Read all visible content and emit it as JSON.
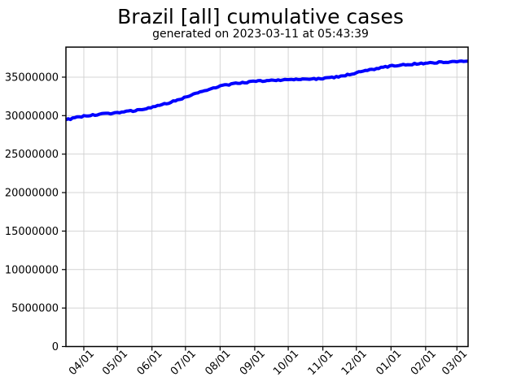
{
  "chart_data": {
    "type": "line",
    "title": "Brazil [all] cumulative cases",
    "subtitle": "generated on 2023-03-11 at 05:43:39",
    "xlabel": "",
    "ylabel": "",
    "grid": true,
    "legend": false,
    "background_color": "#ffffff",
    "grid_color": "#d4d4d4",
    "axis_color": "#000000",
    "tick_label_color": "#000000",
    "ylim": [
      0,
      38900000
    ],
    "y_ticks": [
      0,
      5000000,
      10000000,
      15000000,
      20000000,
      25000000,
      30000000,
      35000000
    ],
    "y_tick_labels": [
      "0",
      "5000000",
      "10000000",
      "15000000",
      "20000000",
      "25000000",
      "30000000",
      "35000000"
    ],
    "x_range": [
      "2022-03-16",
      "2023-03-11"
    ],
    "x_ticks": [
      {
        "date": "2022-04-01",
        "label": "04/01"
      },
      {
        "date": "2022-05-01",
        "label": "05/01"
      },
      {
        "date": "2022-06-01",
        "label": "06/01"
      },
      {
        "date": "2022-07-01",
        "label": "07/01"
      },
      {
        "date": "2022-08-01",
        "label": "08/01"
      },
      {
        "date": "2022-09-01",
        "label": "09/01"
      },
      {
        "date": "2022-10-01",
        "label": "10/01"
      },
      {
        "date": "2022-11-01",
        "label": "11/01"
      },
      {
        "date": "2022-12-01",
        "label": "12/01"
      },
      {
        "date": "2023-01-01",
        "label": "01/01"
      },
      {
        "date": "2023-02-01",
        "label": "02/01"
      },
      {
        "date": "2023-03-01",
        "label": "03/01"
      }
    ],
    "series": [
      {
        "name": "Brazil [all] cumulative cases",
        "color": "#0000ff",
        "line_width": 4,
        "points": [
          [
            "2022-03-16",
            29450000
          ],
          [
            "2022-04-01",
            29950000
          ],
          [
            "2022-04-15",
            30150000
          ],
          [
            "2022-05-01",
            30400000
          ],
          [
            "2022-05-15",
            30620000
          ],
          [
            "2022-06-01",
            31060000
          ],
          [
            "2022-06-15",
            31620000
          ],
          [
            "2022-07-01",
            32380000
          ],
          [
            "2022-07-15",
            33120000
          ],
          [
            "2022-08-01",
            33860000
          ],
          [
            "2022-08-15",
            34160000
          ],
          [
            "2022-09-01",
            34450000
          ],
          [
            "2022-09-15",
            34580000
          ],
          [
            "2022-10-01",
            34660000
          ],
          [
            "2022-10-15",
            34720000
          ],
          [
            "2022-11-01",
            34820000
          ],
          [
            "2022-11-15",
            35050000
          ],
          [
            "2022-12-01",
            35550000
          ],
          [
            "2022-12-15",
            36000000
          ],
          [
            "2023-01-01",
            36450000
          ],
          [
            "2023-01-15",
            36650000
          ],
          [
            "2023-02-01",
            36820000
          ],
          [
            "2023-02-15",
            36950000
          ],
          [
            "2023-03-01",
            37020000
          ],
          [
            "2023-03-11",
            37080000
          ]
        ]
      }
    ]
  }
}
